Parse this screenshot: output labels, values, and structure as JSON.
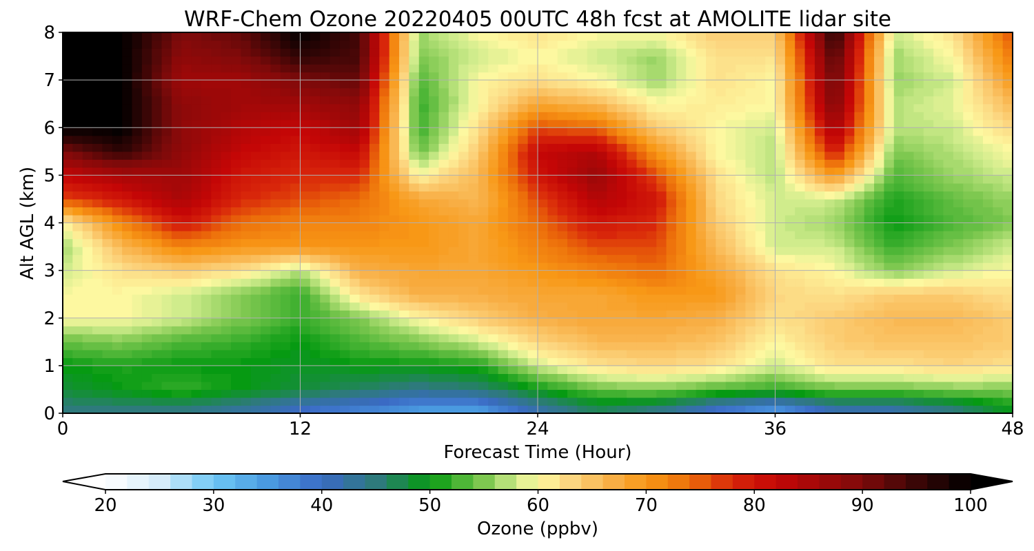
{
  "chart_data": {
    "type": "heatmap",
    "title": "WRF-Chem Ozone  20220405 00UTC 48h fcst at AMOLITE lidar site",
    "xlabel": "Forecast Time (Hour)",
    "ylabel": "Alt AGL (km)",
    "xlim": [
      0,
      48
    ],
    "ylim": [
      0,
      8
    ],
    "xticks": [
      "0",
      "12",
      "24",
      "36",
      "48"
    ],
    "yticks": [
      "0",
      "1",
      "2",
      "3",
      "4",
      "5",
      "6",
      "7",
      "8"
    ],
    "grid": true,
    "x": [
      0,
      3,
      6,
      9,
      12,
      15,
      18,
      21,
      24,
      27,
      30,
      33,
      36,
      39,
      42,
      45,
      48
    ],
    "y": [
      0.1,
      0.5,
      1.0,
      1.5,
      2.0,
      2.5,
      3.0,
      3.5,
      4.0,
      4.5,
      5.0,
      5.5,
      6.0,
      6.5,
      7.0,
      7.5,
      8.0
    ],
    "z": [
      [
        45,
        45,
        45,
        43,
        40,
        38,
        35,
        35,
        42,
        47,
        45,
        40,
        36,
        42,
        42,
        45,
        50
      ],
      [
        48,
        50,
        52,
        50,
        48,
        46,
        44,
        45,
        50,
        54,
        55,
        53,
        52,
        54,
        54,
        55,
        55
      ],
      [
        50,
        51,
        50,
        50,
        49,
        50,
        50,
        51,
        58,
        62,
        63,
        62,
        58,
        62,
        62,
        63,
        62
      ],
      [
        54,
        55,
        53,
        52,
        50,
        53,
        55,
        58,
        63,
        66,
        66,
        65,
        60,
        64,
        65,
        65,
        64
      ],
      [
        60,
        60,
        58,
        55,
        52,
        55,
        60,
        64,
        67,
        68,
        68,
        67,
        62,
        64,
        66,
        66,
        64
      ],
      [
        60,
        60,
        58,
        55,
        52,
        62,
        67,
        67,
        68,
        68,
        70,
        70,
        63,
        62,
        64,
        64,
        62
      ],
      [
        58,
        62,
        64,
        62,
        57,
        67,
        68,
        68,
        70,
        72,
        74,
        68,
        62,
        60,
        55,
        58,
        60
      ],
      [
        56,
        66,
        72,
        70,
        70,
        70,
        70,
        68,
        72,
        76,
        76,
        66,
        58,
        58,
        52,
        55,
        58
      ],
      [
        60,
        72,
        80,
        74,
        72,
        72,
        70,
        68,
        74,
        80,
        78,
        64,
        58,
        56,
        50,
        53,
        55
      ],
      [
        76,
        80,
        85,
        78,
        76,
        74,
        68,
        66,
        76,
        84,
        80,
        63,
        58,
        58,
        51,
        54,
        56
      ],
      [
        82,
        85,
        86,
        80,
        78,
        78,
        60,
        66,
        80,
        87,
        76,
        62,
        57,
        70,
        53,
        56,
        58
      ],
      [
        90,
        96,
        88,
        82,
        80,
        82,
        54,
        64,
        82,
        84,
        70,
        60,
        57,
        80,
        55,
        57,
        60
      ],
      [
        100,
        100,
        88,
        84,
        82,
        86,
        52,
        62,
        76,
        74,
        64,
        60,
        58,
        86,
        57,
        58,
        63
      ],
      [
        100,
        100,
        88,
        86,
        86,
        88,
        52,
        60,
        68,
        66,
        60,
        61,
        60,
        90,
        57,
        59,
        66
      ],
      [
        100,
        100,
        86,
        86,
        90,
        92,
        53,
        60,
        62,
        60,
        56,
        62,
        60,
        92,
        56,
        58,
        70
      ],
      [
        100,
        100,
        88,
        90,
        96,
        94,
        55,
        58,
        60,
        58,
        56,
        62,
        62,
        94,
        56,
        60,
        73
      ],
      [
        100,
        100,
        90,
        92,
        100,
        94,
        56,
        60,
        62,
        60,
        60,
        64,
        64,
        97,
        58,
        62,
        76
      ]
    ],
    "colorbar": {
      "label": "Ozone  (ppbv)",
      "vmin": 20,
      "vmax": 100,
      "ticks": [
        "20",
        "30",
        "40",
        "50",
        "60",
        "70",
        "80",
        "90",
        "100"
      ],
      "extend": "both"
    },
    "colormap": [
      [
        20,
        "#ffffff"
      ],
      [
        25,
        "#d6ecfa"
      ],
      [
        30,
        "#6ec8f5"
      ],
      [
        35,
        "#4a9ae0"
      ],
      [
        40,
        "#3a6ac4"
      ],
      [
        45,
        "#2e7a7c"
      ],
      [
        50,
        "#069a12"
      ],
      [
        55,
        "#7ec850"
      ],
      [
        58,
        "#d0ec8c"
      ],
      [
        60,
        "#fdf8a0"
      ],
      [
        63,
        "#fcd680"
      ],
      [
        67,
        "#f8ae44"
      ],
      [
        70,
        "#f89816"
      ],
      [
        74,
        "#ec6e0a"
      ],
      [
        78,
        "#d8260a"
      ],
      [
        82,
        "#c40606"
      ],
      [
        86,
        "#a00808"
      ],
      [
        90,
        "#7e0a0a"
      ],
      [
        95,
        "#3a0606"
      ],
      [
        100,
        "#000000"
      ]
    ]
  }
}
